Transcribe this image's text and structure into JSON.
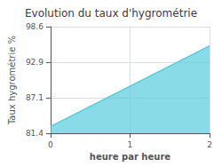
{
  "chart_data": {
    "type": "area",
    "title": "Evolution du taux d'hygrométrie",
    "xlabel": "heure par heure",
    "ylabel": "Taux hygrométrie %",
    "x": [
      0,
      2
    ],
    "values": [
      82.5,
      95.5
    ],
    "xlim": [
      0,
      2
    ],
    "xticks": [
      0,
      1,
      2
    ],
    "ylim": [
      81.4,
      98.6
    ],
    "yticks": [
      81.4,
      87.1,
      92.9,
      98.6
    ],
    "grid": true,
    "color": "#55ccdd"
  }
}
